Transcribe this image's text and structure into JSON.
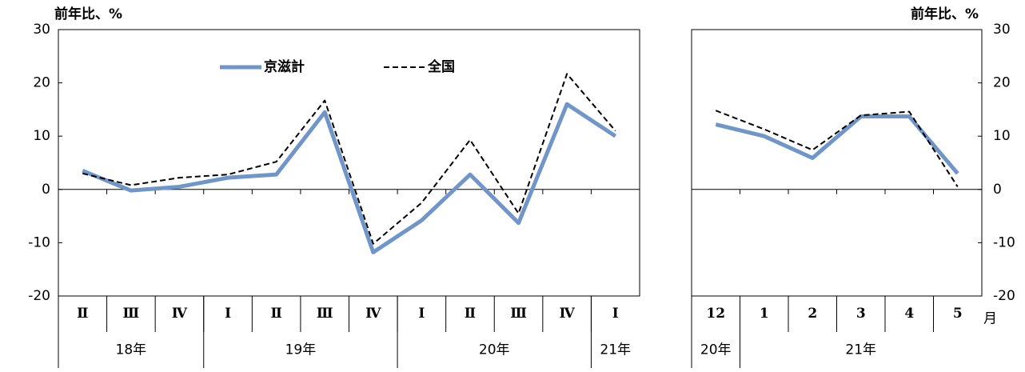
{
  "chart_data": [
    {
      "type": "line",
      "ylabel": "前年比、%",
      "yaxis_side": "left",
      "legend": "top",
      "categories": [
        "Ⅱ",
        "Ⅲ",
        "Ⅳ",
        "Ⅰ",
        "Ⅱ",
        "Ⅲ",
        "Ⅳ",
        "Ⅰ",
        "Ⅱ",
        "Ⅲ",
        "Ⅳ",
        "Ⅰ"
      ],
      "groups": [
        {
          "label": "18年",
          "span": 3
        },
        {
          "label": "19年",
          "span": 4
        },
        {
          "label": "20年",
          "span": 4
        },
        {
          "label": "21年",
          "span": 1
        }
      ],
      "ylim": [
        -20,
        30
      ],
      "yticks": [
        -20,
        -10,
        0,
        10,
        20,
        30
      ],
      "series": [
        {
          "name": "京滋計",
          "color": "#7096c9",
          "style": "solid",
          "values": [
            3.5,
            -0.2,
            0.5,
            2.2,
            2.8,
            14.5,
            -11.8,
            -5.8,
            2.8,
            -6.3,
            16,
            10
          ]
        },
        {
          "name": "全国",
          "color": "#000000",
          "style": "dashed",
          "values": [
            3,
            0.8,
            2.2,
            2.8,
            5.2,
            16.7,
            -10.2,
            -2.5,
            9.3,
            -4.5,
            21.7,
            11
          ]
        }
      ]
    },
    {
      "type": "line",
      "ylabel": "前年比、%",
      "yaxis_side": "right",
      "xunit": "月",
      "categories": [
        "12",
        "1",
        "2",
        "3",
        "4",
        "5"
      ],
      "groups": [
        {
          "label": "20年",
          "span": 1
        },
        {
          "label": "21年",
          "span": 5
        }
      ],
      "ylim": [
        -20,
        30
      ],
      "yticks": [
        -20,
        -10,
        0,
        10,
        20,
        30
      ],
      "series": [
        {
          "color": "#7096c9",
          "style": "solid",
          "values": [
            12.2,
            10,
            5.9,
            13.7,
            13.7,
            3
          ]
        },
        {
          "color": "#000000",
          "style": "dashed",
          "values": [
            14.8,
            11.3,
            7.4,
            13.9,
            14.6,
            0.5
          ]
        }
      ]
    }
  ]
}
